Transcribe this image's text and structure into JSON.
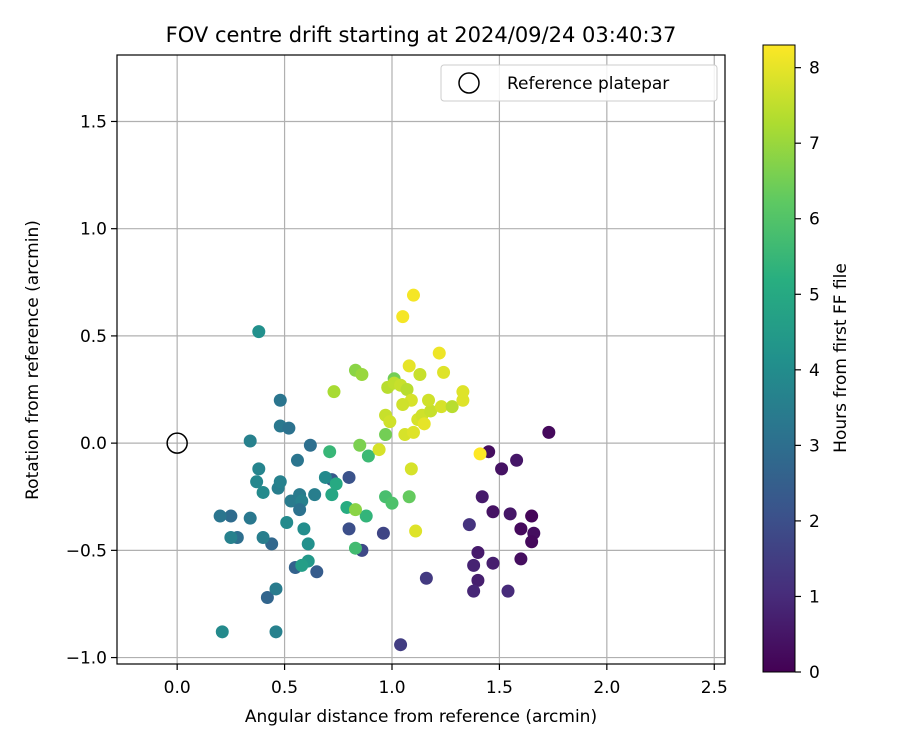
{
  "chart_data": {
    "type": "scatter",
    "title": "FOV centre drift starting at 2024/09/24 03:40:37",
    "xlabel": "Angular distance from reference (arcmin)",
    "ylabel": "Rotation from reference (arcmin)",
    "xlim": [
      -0.28,
      2.55
    ],
    "ylim": [
      -1.03,
      1.81
    ],
    "xticks": [
      0.0,
      0.5,
      1.0,
      1.5,
      2.0,
      2.5
    ],
    "xtick_labels": [
      "0.0",
      "0.5",
      "1.0",
      "1.5",
      "2.0",
      "2.5"
    ],
    "yticks": [
      -1.0,
      -0.5,
      0.0,
      0.5,
      1.0,
      1.5
    ],
    "ytick_labels": [
      "−1.0",
      "−0.5",
      "0.0",
      "0.5",
      "1.0",
      "1.5"
    ],
    "grid": true,
    "legend": {
      "placement": "top-right",
      "label": "Reference platepar"
    },
    "reference_point": {
      "x": 0.0,
      "y": 0.0
    },
    "colorbar": {
      "label": "Hours from first FF file",
      "min": 0,
      "max": 8.3,
      "ticks": [
        0,
        1,
        2,
        3,
        4,
        5,
        6,
        7,
        8
      ],
      "tick_labels": [
        "0",
        "1",
        "2",
        "3",
        "4",
        "5",
        "6",
        "7",
        "8"
      ],
      "colormap": "viridis"
    },
    "points": [
      {
        "x": 1.73,
        "y": 0.05,
        "t": 0.2
      },
      {
        "x": 1.45,
        "y": -0.04,
        "t": 0.3
      },
      {
        "x": 1.51,
        "y": -0.12,
        "t": 0.4
      },
      {
        "x": 1.58,
        "y": -0.08,
        "t": 0.5
      },
      {
        "x": 1.42,
        "y": -0.25,
        "t": 0.6
      },
      {
        "x": 1.47,
        "y": -0.32,
        "t": 0.4
      },
      {
        "x": 1.55,
        "y": -0.33,
        "t": 0.5
      },
      {
        "x": 1.6,
        "y": -0.4,
        "t": 0.2
      },
      {
        "x": 1.65,
        "y": -0.34,
        "t": 0.1
      },
      {
        "x": 1.66,
        "y": -0.42,
        "t": 0.3
      },
      {
        "x": 1.65,
        "y": -0.46,
        "t": 0.2
      },
      {
        "x": 1.6,
        "y": -0.54,
        "t": 0.3
      },
      {
        "x": 1.4,
        "y": -0.51,
        "t": 0.6
      },
      {
        "x": 1.47,
        "y": -0.56,
        "t": 0.7
      },
      {
        "x": 1.38,
        "y": -0.57,
        "t": 0.8
      },
      {
        "x": 1.4,
        "y": -0.64,
        "t": 0.7
      },
      {
        "x": 1.38,
        "y": -0.69,
        "t": 0.9
      },
      {
        "x": 1.54,
        "y": -0.69,
        "t": 1.0
      },
      {
        "x": 1.36,
        "y": -0.38,
        "t": 1.2
      },
      {
        "x": 1.16,
        "y": -0.63,
        "t": 1.4
      },
      {
        "x": 1.04,
        "y": -0.94,
        "t": 1.5
      },
      {
        "x": 0.96,
        "y": -0.42,
        "t": 1.7
      },
      {
        "x": 0.86,
        "y": -0.5,
        "t": 1.8
      },
      {
        "x": 0.8,
        "y": -0.4,
        "t": 2.0
      },
      {
        "x": 0.8,
        "y": -0.16,
        "t": 2.1
      },
      {
        "x": 0.72,
        "y": -0.17,
        "t": 2.3
      },
      {
        "x": 0.65,
        "y": -0.6,
        "t": 2.4
      },
      {
        "x": 0.55,
        "y": -0.58,
        "t": 2.6
      },
      {
        "x": 0.42,
        "y": -0.72,
        "t": 2.7
      },
      {
        "x": 0.44,
        "y": -0.47,
        "t": 2.8
      },
      {
        "x": 0.28,
        "y": -0.44,
        "t": 3.0
      },
      {
        "x": 0.25,
        "y": -0.34,
        "t": 2.9
      },
      {
        "x": 0.2,
        "y": -0.34,
        "t": 3.2
      },
      {
        "x": 0.34,
        "y": -0.35,
        "t": 3.3
      },
      {
        "x": 0.4,
        "y": -0.44,
        "t": 3.5
      },
      {
        "x": 0.25,
        "y": -0.44,
        "t": 3.6
      },
      {
        "x": 0.46,
        "y": -0.68,
        "t": 3.4
      },
      {
        "x": 0.46,
        "y": -0.88,
        "t": 3.6
      },
      {
        "x": 0.21,
        "y": -0.88,
        "t": 3.9
      },
      {
        "x": 0.48,
        "y": 0.2,
        "t": 3.2
      },
      {
        "x": 0.48,
        "y": 0.08,
        "t": 3.3
      },
      {
        "x": 0.52,
        "y": 0.07,
        "t": 3.1
      },
      {
        "x": 0.34,
        "y": 0.01,
        "t": 3.6
      },
      {
        "x": 0.38,
        "y": 0.52,
        "t": 4.1
      },
      {
        "x": 0.38,
        "y": -0.12,
        "t": 3.7
      },
      {
        "x": 0.37,
        "y": -0.18,
        "t": 3.8
      },
      {
        "x": 0.4,
        "y": -0.23,
        "t": 3.9
      },
      {
        "x": 0.47,
        "y": -0.21,
        "t": 3.5
      },
      {
        "x": 0.48,
        "y": -0.18,
        "t": 3.6
      },
      {
        "x": 0.53,
        "y": -0.27,
        "t": 3.4
      },
      {
        "x": 0.57,
        "y": -0.24,
        "t": 3.4
      },
      {
        "x": 0.58,
        "y": -0.27,
        "t": 3.6
      },
      {
        "x": 0.57,
        "y": -0.31,
        "t": 3.1
      },
      {
        "x": 0.56,
        "y": -0.08,
        "t": 3.2
      },
      {
        "x": 0.62,
        "y": -0.01,
        "t": 3.0
      },
      {
        "x": 0.64,
        "y": -0.24,
        "t": 3.5
      },
      {
        "x": 0.51,
        "y": -0.37,
        "t": 3.9
      },
      {
        "x": 0.59,
        "y": -0.4,
        "t": 4.0
      },
      {
        "x": 0.61,
        "y": -0.47,
        "t": 4.1
      },
      {
        "x": 0.61,
        "y": -0.55,
        "t": 4.4
      },
      {
        "x": 0.58,
        "y": -0.57,
        "t": 4.6
      },
      {
        "x": 0.69,
        "y": -0.16,
        "t": 3.9
      },
      {
        "x": 0.72,
        "y": -0.24,
        "t": 4.9
      },
      {
        "x": 0.74,
        "y": -0.19,
        "t": 5.0
      },
      {
        "x": 0.71,
        "y": -0.04,
        "t": 5.5
      },
      {
        "x": 0.79,
        "y": -0.3,
        "t": 5.1
      },
      {
        "x": 0.88,
        "y": -0.34,
        "t": 5.4
      },
      {
        "x": 0.83,
        "y": -0.49,
        "t": 5.7
      },
      {
        "x": 0.89,
        "y": -0.06,
        "t": 5.6
      },
      {
        "x": 0.97,
        "y": -0.25,
        "t": 5.8
      },
      {
        "x": 1.0,
        "y": -0.28,
        "t": 5.9
      },
      {
        "x": 1.08,
        "y": -0.25,
        "t": 6.3
      },
      {
        "x": 0.83,
        "y": -0.31,
        "t": 6.8
      },
      {
        "x": 0.85,
        "y": -0.01,
        "t": 6.6
      },
      {
        "x": 0.97,
        "y": 0.04,
        "t": 6.5
      },
      {
        "x": 1.01,
        "y": 0.3,
        "t": 6.5
      },
      {
        "x": 0.83,
        "y": 0.34,
        "t": 6.8
      },
      {
        "x": 0.86,
        "y": 0.32,
        "t": 7.0
      },
      {
        "x": 0.73,
        "y": 0.24,
        "t": 7.2
      },
      {
        "x": 0.98,
        "y": 0.26,
        "t": 7.4
      },
      {
        "x": 1.01,
        "y": 0.28,
        "t": 7.5
      },
      {
        "x": 1.04,
        "y": 0.27,
        "t": 7.6
      },
      {
        "x": 1.07,
        "y": 0.25,
        "t": 7.4
      },
      {
        "x": 1.09,
        "y": 0.2,
        "t": 7.8
      },
      {
        "x": 1.05,
        "y": 0.18,
        "t": 7.7
      },
      {
        "x": 0.97,
        "y": 0.13,
        "t": 7.6
      },
      {
        "x": 0.99,
        "y": 0.1,
        "t": 7.7
      },
      {
        "x": 0.94,
        "y": -0.03,
        "t": 7.8
      },
      {
        "x": 1.06,
        "y": 0.04,
        "t": 7.8
      },
      {
        "x": 1.1,
        "y": 0.05,
        "t": 7.9
      },
      {
        "x": 1.12,
        "y": 0.11,
        "t": 7.8
      },
      {
        "x": 1.14,
        "y": 0.13,
        "t": 7.7
      },
      {
        "x": 1.15,
        "y": 0.09,
        "t": 8.0
      },
      {
        "x": 1.13,
        "y": 0.32,
        "t": 7.6
      },
      {
        "x": 1.18,
        "y": 0.15,
        "t": 7.6
      },
      {
        "x": 1.17,
        "y": 0.2,
        "t": 7.7
      },
      {
        "x": 1.23,
        "y": 0.17,
        "t": 7.8
      },
      {
        "x": 1.28,
        "y": 0.17,
        "t": 7.4
      },
      {
        "x": 1.33,
        "y": 0.2,
        "t": 7.9
      },
      {
        "x": 1.33,
        "y": 0.24,
        "t": 7.9
      },
      {
        "x": 1.24,
        "y": 0.33,
        "t": 7.9
      },
      {
        "x": 1.22,
        "y": 0.42,
        "t": 8.1
      },
      {
        "x": 1.08,
        "y": 0.36,
        "t": 8.0
      },
      {
        "x": 1.05,
        "y": 0.59,
        "t": 8.2
      },
      {
        "x": 1.1,
        "y": 0.69,
        "t": 8.2
      },
      {
        "x": 1.09,
        "y": -0.12,
        "t": 7.8
      },
      {
        "x": 1.11,
        "y": -0.41,
        "t": 7.9
      },
      {
        "x": 1.41,
        "y": -0.05,
        "t": 8.3
      }
    ]
  }
}
